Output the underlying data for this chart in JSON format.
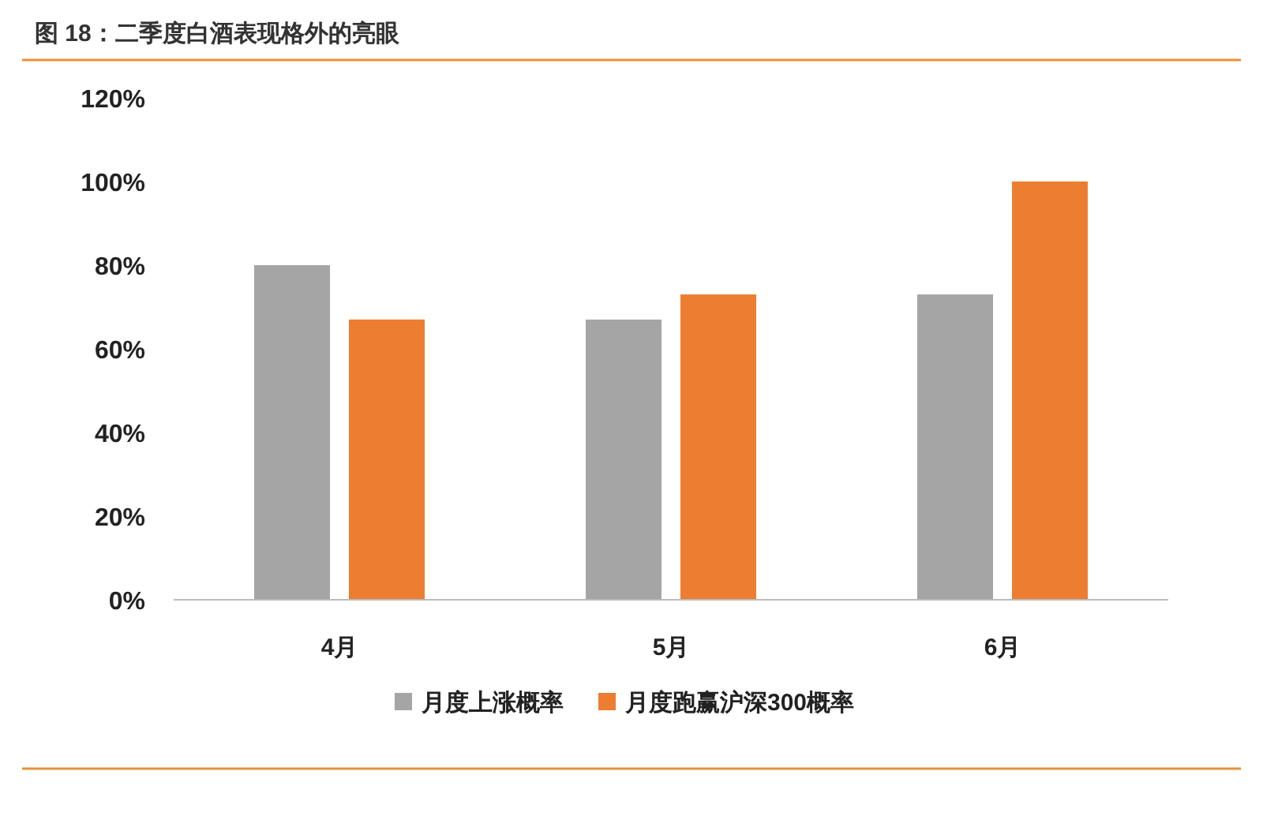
{
  "chart_data": {
    "type": "bar",
    "title": "图 18：二季度白酒表现格外的亮眼",
    "categories": [
      "4月",
      "5月",
      "6月"
    ],
    "series": [
      {
        "name": "月度上涨概率",
        "color": "#a5a5a5",
        "values": [
          80,
          67,
          73
        ]
      },
      {
        "name": "月度跑赢沪深300概率",
        "color": "#ed7d31",
        "values": [
          67,
          73,
          100
        ]
      }
    ],
    "ylim": [
      0,
      120
    ],
    "yticks": [
      {
        "value": 0,
        "label": "0%"
      },
      {
        "value": 20,
        "label": "20%"
      },
      {
        "value": 40,
        "label": "40%"
      },
      {
        "value": 60,
        "label": "60%"
      },
      {
        "value": 80,
        "label": "80%"
      },
      {
        "value": 100,
        "label": "100%"
      },
      {
        "value": 120,
        "label": "120%"
      }
    ],
    "grid": false,
    "legend": "bottom"
  }
}
